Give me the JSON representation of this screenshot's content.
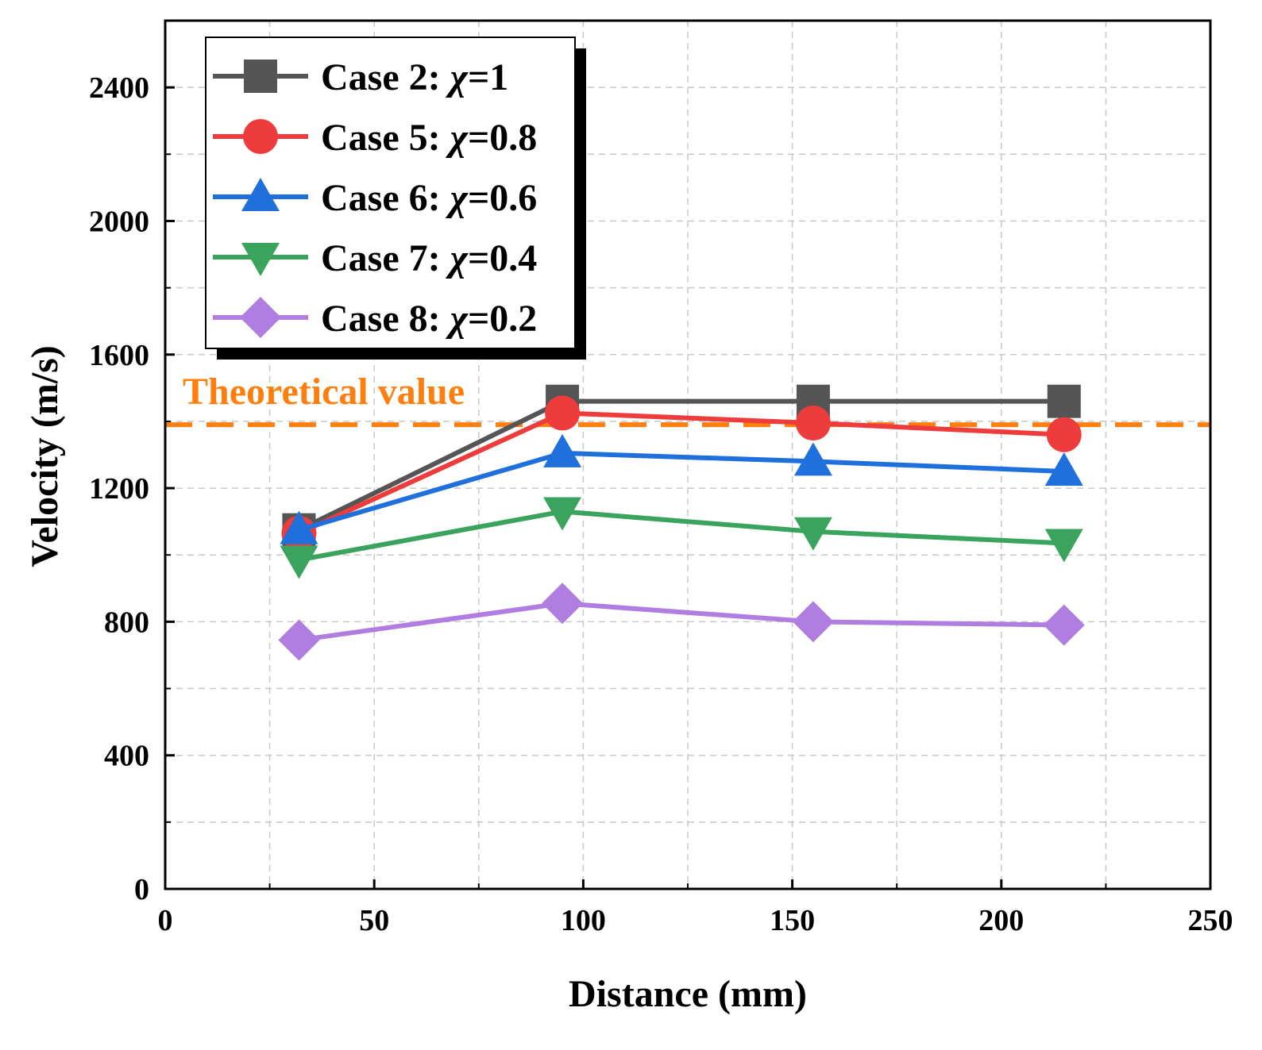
{
  "chart_data": {
    "type": "line",
    "xlabel": "Distance  (mm)",
    "ylabel": "Velocity (m/s)",
    "xlim": [
      0,
      250
    ],
    "ylim": [
      0,
      2600
    ],
    "x_ticks": [
      0,
      50,
      100,
      150,
      200,
      250
    ],
    "y_ticks": [
      0,
      400,
      800,
      1200,
      1600,
      2000,
      2400
    ],
    "grid": true,
    "legend_position": "top-left",
    "x": [
      32,
      95,
      155,
      215
    ],
    "series": [
      {
        "name": "Case 2: χ=1",
        "prefix": "Case 2: ",
        "chi": "χ",
        "suffix": "=1",
        "color": "#555555",
        "marker": "square",
        "values": [
          1075,
          1460,
          1460,
          1460
        ]
      },
      {
        "name": "Case 5: χ=0.8",
        "prefix": "Case 5: ",
        "chi": "χ",
        "suffix": "=0.8",
        "color": "#ee3b3b",
        "marker": "circle",
        "values": [
          1065,
          1425,
          1395,
          1360
        ]
      },
      {
        "name": "Case 6: χ=0.6",
        "prefix": "Case 6: ",
        "chi": "χ",
        "suffix": "=0.6",
        "color": "#1f6fdc",
        "marker": "triangle-up",
        "values": [
          1075,
          1305,
          1280,
          1250
        ]
      },
      {
        "name": "Case 7: χ=0.4",
        "prefix": "Case 7: ",
        "chi": "χ",
        "suffix": "=0.4",
        "color": "#3aa35e",
        "marker": "triangle-down",
        "values": [
          985,
          1130,
          1070,
          1035
        ]
      },
      {
        "name": "Case 8: χ=0.2",
        "prefix": "Case 8: ",
        "chi": "χ",
        "suffix": "=0.2",
        "color": "#b07ee0",
        "marker": "diamond",
        "values": [
          745,
          855,
          800,
          790
        ]
      }
    ],
    "reference_line": {
      "label": "Theoretical value",
      "value": 1390,
      "color": "#ff7f0e",
      "style": "dashed"
    }
  }
}
